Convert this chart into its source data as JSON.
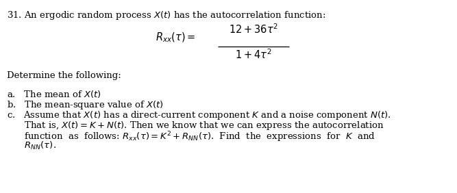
{
  "background_color": "#ffffff",
  "figsize": [
    6.67,
    2.82
  ],
  "dpi": 100,
  "title_line": "31. An ergodic random process $X(t)$ has the autocorrelation function:",
  "formula_numerator": "$12 + 36\\tau^2$",
  "formula_denominator": "$1 + 4\\tau^2$",
  "determine_line": "Determine the following:",
  "item_a": "a.   The mean of $X(t)$",
  "item_b": "b.   The mean-square value of $X(t)$",
  "item_c1": "c.   Assume that $X(t)$ has a direct-current component $K$ and a noise component $N(t)$.",
  "item_c2": "      That is, $X(t) = K + N(t)$. Then we know that we can express the autocorrelation",
  "item_c3": "      function  as  follows: $R_{xx}(\\tau) = K^2 + R_{NN}(\\tau)$.  Find  the  expressions  for  $K$  and",
  "item_c4": "      $R_{NN}(\\tau)$.",
  "text_color": "#000000",
  "font_size_main": 9.5,
  "font_size_formula": 10.5
}
